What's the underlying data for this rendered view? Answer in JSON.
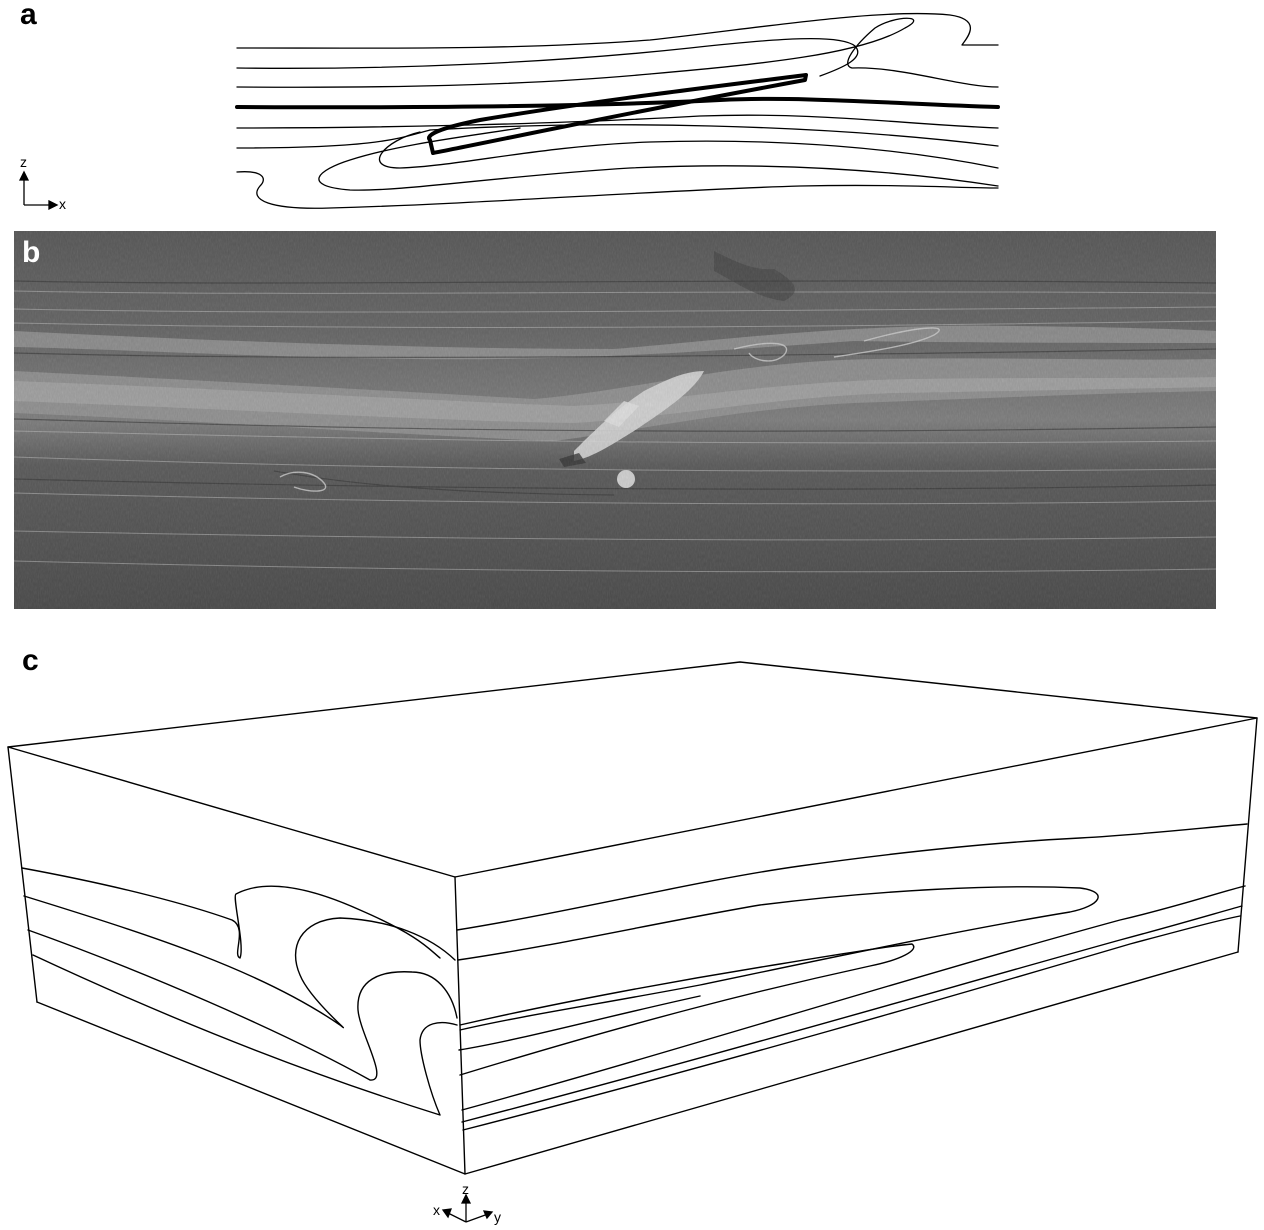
{
  "panels": {
    "a": {
      "label": "a",
      "axes": {
        "vertical": "z",
        "horizontal": "x"
      }
    },
    "b": {
      "label": "b"
    },
    "c": {
      "label": "c",
      "axes": {
        "vertical": "z",
        "left": "x",
        "right": "y"
      }
    }
  }
}
